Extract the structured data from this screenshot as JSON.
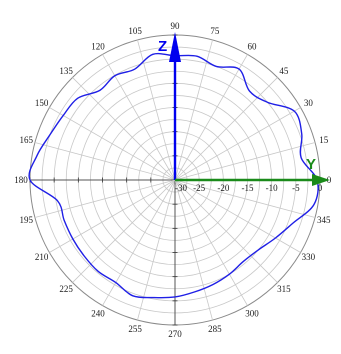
{
  "chart_data": {
    "type": "polar-line",
    "angle_ticks_deg": [
      0,
      15,
      30,
      45,
      60,
      75,
      90,
      105,
      120,
      135,
      150,
      165,
      180,
      195,
      210,
      225,
      240,
      255,
      270,
      285,
      300,
      315,
      330,
      345
    ],
    "angle_tick_labels": [
      "0",
      "15",
      "30",
      "45",
      "60",
      "75",
      "90",
      "105",
      "120",
      "135",
      "150",
      "165",
      "180",
      "195",
      "210",
      "225",
      "240",
      "255",
      "270",
      "285",
      "300",
      "315",
      "330",
      "345"
    ],
    "radial_ticks": [
      -30,
      -25,
      -20,
      -15,
      -10,
      -5,
      0
    ],
    "radial_tick_labels": [
      "-30",
      "-25",
      "-20",
      "-15",
      "-10",
      "-5",
      "0"
    ],
    "rlim": [
      -30,
      0
    ],
    "grid": true,
    "series": [
      {
        "color": "#1f1fe6",
        "angles_deg": [
          0,
          10,
          20,
          30,
          40,
          50,
          60,
          70,
          80,
          90,
          100,
          110,
          120,
          130,
          140,
          150,
          160,
          170,
          180,
          190,
          200,
          210,
          220,
          230,
          240,
          250,
          260,
          270,
          280,
          290,
          300,
          310,
          320,
          330,
          340,
          350
        ],
        "values": [
          -0.6,
          -3.5,
          -2.1,
          -1.5,
          -5,
          -6,
          -3.5,
          -5,
          -4,
          -4.3,
          -3.6,
          -5.6,
          -5.1,
          -5.8,
          -3.7,
          -3.3,
          -2.5,
          -1,
          0,
          -5.3,
          -5.6,
          -5.6,
          -5.5,
          -5.3,
          -5.5,
          -4.5,
          -5.3,
          -5.8,
          -6.5,
          -7,
          -7.5,
          -8,
          -7.5,
          -6,
          -4,
          -0.8
        ]
      }
    ]
  },
  "axes_arrows": {
    "vertical": {
      "letter": "Z",
      "color": "#0000ee"
    },
    "horizontal": {
      "letter": "Y",
      "color": "#1a8a1a"
    }
  }
}
